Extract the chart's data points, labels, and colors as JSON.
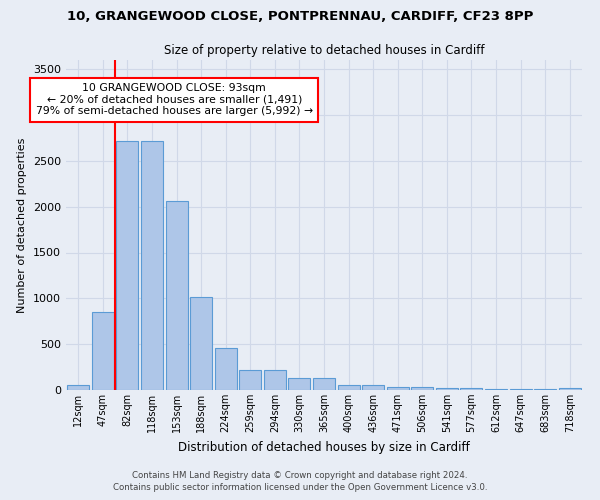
{
  "title1": "10, GRANGEWOOD CLOSE, PONTPRENNAU, CARDIFF, CF23 8PP",
  "title2": "Size of property relative to detached houses in Cardiff",
  "xlabel": "Distribution of detached houses by size in Cardiff",
  "ylabel": "Number of detached properties",
  "categories": [
    "12sqm",
    "47sqm",
    "82sqm",
    "118sqm",
    "153sqm",
    "188sqm",
    "224sqm",
    "259sqm",
    "294sqm",
    "330sqm",
    "365sqm",
    "400sqm",
    "436sqm",
    "471sqm",
    "506sqm",
    "541sqm",
    "577sqm",
    "612sqm",
    "647sqm",
    "683sqm",
    "718sqm"
  ],
  "values": [
    55,
    850,
    2720,
    2720,
    2060,
    1010,
    455,
    215,
    215,
    130,
    130,
    60,
    55,
    35,
    35,
    22,
    18,
    15,
    12,
    10,
    18
  ],
  "bar_color": "#aec6e8",
  "bar_edge_color": "#5b9bd5",
  "grid_color": "#d0d8e8",
  "background_color": "#e8edf5",
  "vline_x_idx": 2,
  "vline_color": "red",
  "annotation_text": "10 GRANGEWOOD CLOSE: 93sqm\n← 20% of detached houses are smaller (1,491)\n79% of semi-detached houses are larger (5,992) →",
  "annotation_box_color": "white",
  "annotation_box_edge": "red",
  "ylim": [
    0,
    3600
  ],
  "yticks": [
    0,
    500,
    1000,
    1500,
    2000,
    2500,
    3000,
    3500
  ],
  "footer1": "Contains HM Land Registry data © Crown copyright and database right 2024.",
  "footer2": "Contains public sector information licensed under the Open Government Licence v3.0."
}
